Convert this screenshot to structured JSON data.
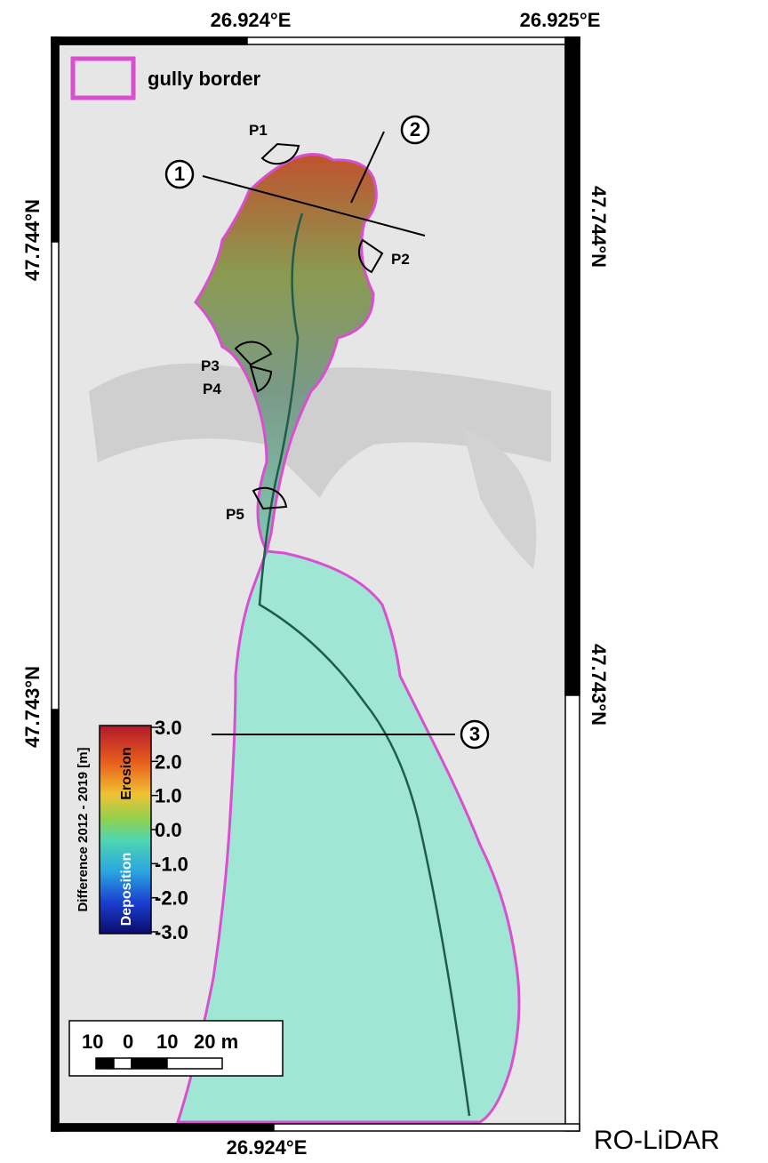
{
  "coordinates": {
    "top": [
      "26.924°E",
      "26.925°E"
    ],
    "bottom": [
      "26.924°E"
    ],
    "left": [
      "47.744°N",
      "47.743°N"
    ],
    "right": [
      "47.744°N",
      "47.743°N"
    ]
  },
  "legend": {
    "gully_border": "gully border"
  },
  "colorbar": {
    "title": "Difference 2012 - 2019 [m]",
    "erosion": "Erosion",
    "deposition": "Deposition",
    "ticks": [
      "3.0",
      "2.0",
      "1.0",
      "0.0",
      "-1.0",
      "-2.0",
      "-3.0"
    ]
  },
  "scale_bar": {
    "labels": [
      "10",
      "0",
      "10",
      "20 m"
    ]
  },
  "profiles": [
    "1",
    "2",
    "3"
  ],
  "photo_points": [
    "P1",
    "P2",
    "P3",
    "P4",
    "P5"
  ],
  "source": "RO-LiDAR"
}
